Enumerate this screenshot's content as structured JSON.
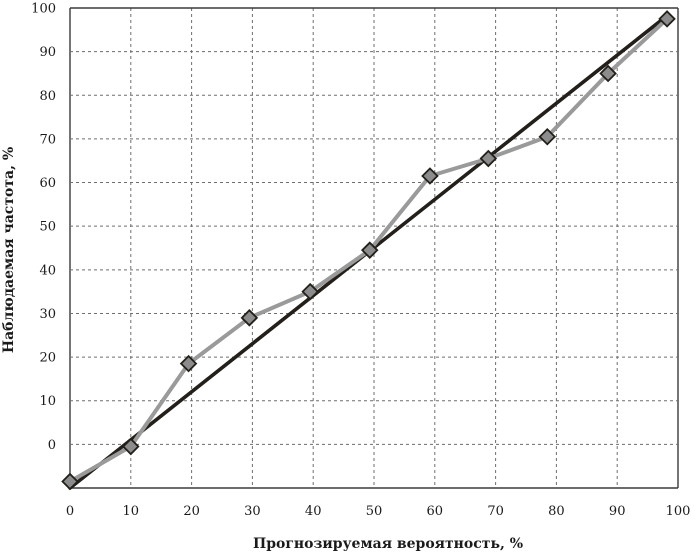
{
  "chart_data": {
    "type": "line",
    "title": "",
    "xlabel": "Прогнозируемая вероятность, %",
    "ylabel": "Наблюдаемая частота, %",
    "xlim": [
      0,
      100
    ],
    "ylim": [
      -10,
      100
    ],
    "x_ticks": [
      0,
      10,
      20,
      30,
      40,
      50,
      60,
      70,
      80,
      90,
      100
    ],
    "y_ticks": [
      0,
      10,
      20,
      30,
      40,
      50,
      60,
      70,
      80,
      90,
      100
    ],
    "grid": true,
    "series": [
      {
        "kind": "reference-line",
        "color": "#231f1a",
        "x": [
          0,
          98
        ],
        "y": [
          -10,
          98
        ]
      },
      {
        "kind": "observed",
        "color": "#9a9a9a",
        "marker": "diamond",
        "marker_color": "#8c8c8c",
        "x": [
          0,
          10,
          19.5,
          29.5,
          39.5,
          49.3,
          59.2,
          68.8,
          78.5,
          88.5,
          98.2
        ],
        "y": [
          -8.5,
          -0.5,
          18.5,
          29.0,
          35.0,
          44.5,
          61.5,
          65.5,
          70.5,
          85.0,
          97.5
        ]
      }
    ]
  }
}
